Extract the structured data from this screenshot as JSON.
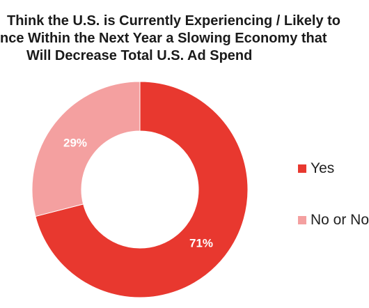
{
  "chart_data": {
    "type": "pie",
    "donut": true,
    "title_lines": [
      "Think the U.S. is Currently Experiencing / Likely to",
      "nce Within the Next Year a Slowing Economy that",
      "Will Decrease Total U.S. Ad Spend"
    ],
    "slices": [
      {
        "name": "Yes",
        "value": 71,
        "label": "71%",
        "color": "#e8382f"
      },
      {
        "name": "No or No",
        "value": 29,
        "label": "29%",
        "color": "#f4a0a0"
      }
    ],
    "legend": {
      "placement": "right",
      "items": [
        {
          "label": "Yes",
          "color": "#e8382f"
        },
        {
          "label": "No or No",
          "color": "#f4a0a0"
        }
      ]
    },
    "start_angle_deg": 0,
    "direction": "clockwise"
  }
}
